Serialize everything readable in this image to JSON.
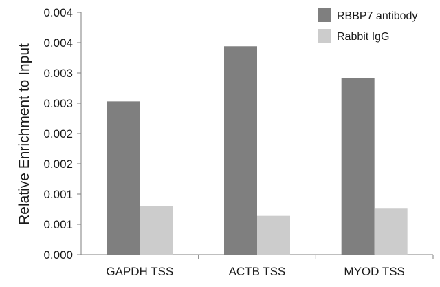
{
  "chart_data": {
    "type": "bar",
    "categories": [
      "GAPDH TSS",
      "ACTB TSS",
      "MYOD TSS"
    ],
    "series": [
      {
        "name": "RBBP7 antibody",
        "values": [
          0.00253,
          0.00344,
          0.00291
        ],
        "color": "#7f7f7f"
      },
      {
        "name": "Rabbit IgG",
        "values": [
          0.0008,
          0.00064,
          0.00077
        ],
        "color": "#cccccc"
      }
    ],
    "title": "",
    "xlabel": "",
    "ylabel": "Relative Enrichment to Input",
    "ylim": [
      0,
      0.004
    ],
    "yticks": [
      0,
      0.0005,
      0.001,
      0.0015,
      0.002,
      0.0025,
      0.003,
      0.0035,
      0.004
    ],
    "ytick_labels": [
      "0.000",
      "0.001",
      "0.001",
      "0.002",
      "0.002",
      "0.003",
      "0.003",
      "0.004",
      "0.004"
    ],
    "grid": false,
    "legend_position": "top-right"
  }
}
